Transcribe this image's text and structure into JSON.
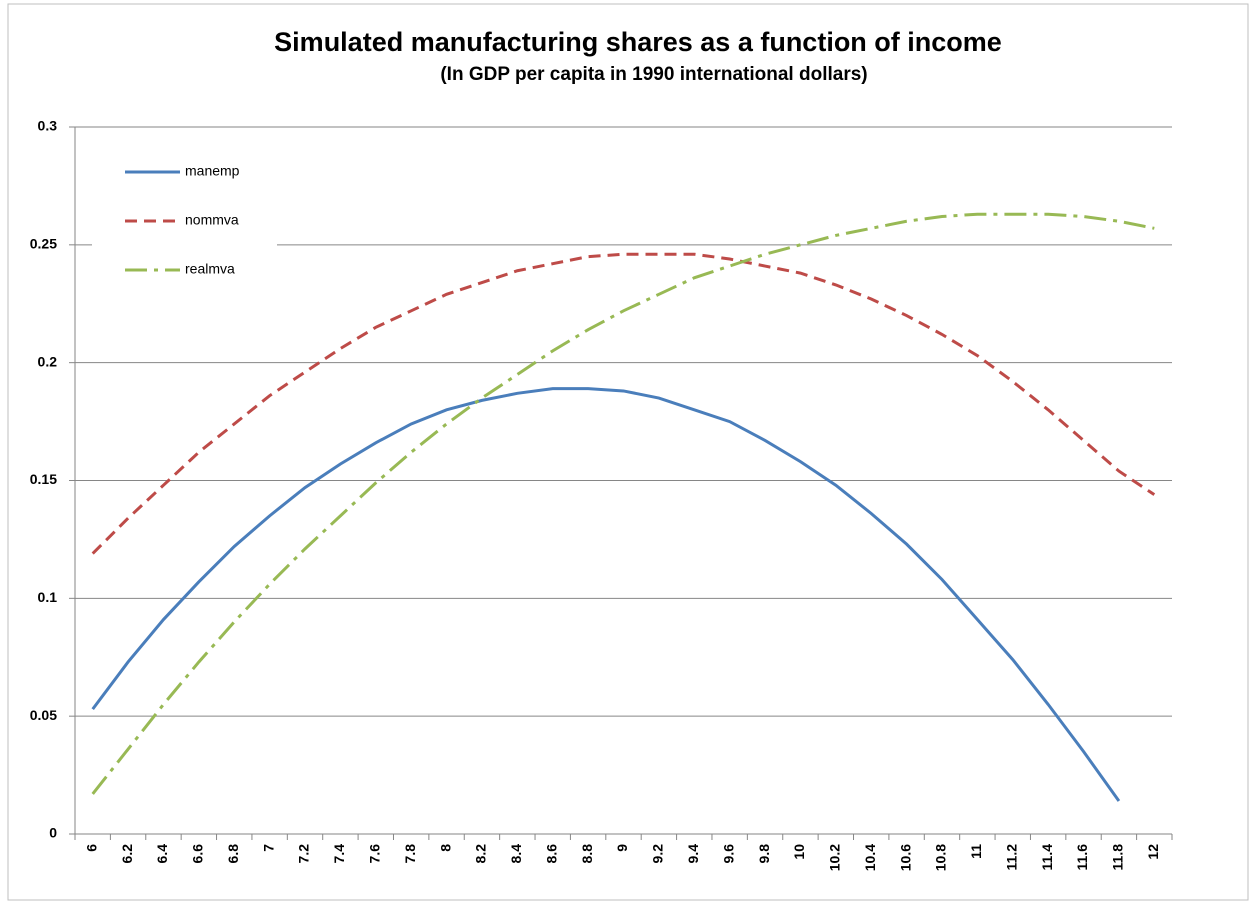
{
  "chart_data": {
    "type": "line",
    "title": "Simulated manufacturing shares as a function of income",
    "subtitle": "(In GDP per capita in 1990 international dollars)",
    "categories": [
      "6",
      "6.2",
      "6.4",
      "6.6",
      "6.8",
      "7",
      "7.2",
      "7.4",
      "7.6",
      "7.8",
      "8",
      "8.2",
      "8.4",
      "8.6",
      "8.8",
      "9",
      "9.2",
      "9.4",
      "9.6",
      "9.8",
      "10",
      "10.2",
      "10.4",
      "10.6",
      "10.8",
      "11",
      "11.2",
      "11.4",
      "11.6",
      "11.8",
      "12"
    ],
    "series": [
      {
        "name": "manemp",
        "color": "#4a7ebb",
        "dash": "solid",
        "values": [
          0.053,
          0.073,
          0.091,
          0.107,
          0.122,
          0.135,
          0.147,
          0.157,
          0.166,
          0.174,
          0.18,
          0.184,
          0.187,
          0.189,
          0.189,
          0.188,
          0.185,
          0.18,
          0.175,
          0.167,
          0.158,
          0.148,
          0.136,
          0.123,
          0.108,
          0.091,
          0.074,
          0.055,
          0.035,
          0.014,
          null
        ]
      },
      {
        "name": "nommva",
        "color": "#be4b48",
        "dash": "dash",
        "values": [
          0.119,
          0.134,
          0.148,
          0.162,
          0.174,
          0.186,
          0.196,
          0.206,
          0.215,
          0.222,
          0.229,
          0.234,
          0.239,
          0.242,
          0.245,
          0.246,
          0.246,
          0.246,
          0.244,
          0.241,
          0.238,
          0.233,
          0.227,
          0.22,
          0.212,
          0.203,
          0.192,
          0.18,
          0.167,
          0.154,
          0.144
        ]
      },
      {
        "name": "realmva",
        "color": "#98b954",
        "dash": "dashdot",
        "values": [
          0.017,
          0.036,
          0.055,
          0.073,
          0.09,
          0.106,
          0.121,
          0.135,
          0.149,
          0.162,
          0.174,
          0.185,
          0.195,
          0.205,
          0.214,
          0.222,
          0.229,
          0.236,
          0.241,
          0.246,
          0.25,
          0.254,
          0.257,
          0.26,
          0.262,
          0.263,
          0.263,
          0.263,
          0.262,
          0.26,
          0.257
        ]
      }
    ],
    "ylim": [
      0,
      0.3
    ],
    "yticks": [
      0,
      0.05,
      0.1,
      0.15,
      0.2,
      0.25,
      0.3
    ],
    "grid": true,
    "legend": "top-left"
  }
}
